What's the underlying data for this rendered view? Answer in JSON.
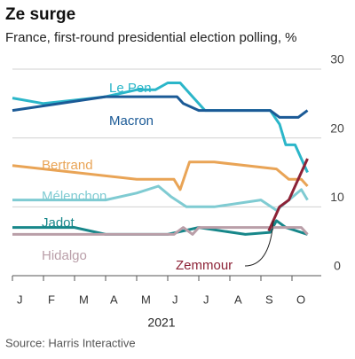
{
  "chart_data": {
    "type": "line",
    "title": "Ze surge",
    "subtitle": "France, first-round presidential election polling, %",
    "xlabel": "2021",
    "source": "Source: Harris Interactive",
    "xlim": [
      0,
      9.6
    ],
    "xticks": [
      {
        "value": 0,
        "label": "J"
      },
      {
        "value": 1,
        "label": "F"
      },
      {
        "value": 2,
        "label": "M"
      },
      {
        "value": 3,
        "label": "A"
      },
      {
        "value": 4,
        "label": "M"
      },
      {
        "value": 5,
        "label": "J"
      },
      {
        "value": 6,
        "label": "J"
      },
      {
        "value": 7,
        "label": "A"
      },
      {
        "value": 8,
        "label": "S"
      },
      {
        "value": 9,
        "label": "O"
      }
    ],
    "ylim": [
      0,
      30
    ],
    "yticks": [
      0,
      10,
      20,
      30
    ],
    "grid": true,
    "series": [
      {
        "name": "Le Pen",
        "color": "#2bb6c9",
        "x": [
          0,
          1,
          2,
          3,
          4,
          4.6,
          5,
          5.4,
          5.8,
          6.2,
          7,
          8.3,
          8.6,
          8.8,
          9.1,
          9.5
        ],
        "values": [
          25.8,
          25,
          25.5,
          26,
          27,
          27,
          28,
          28,
          26,
          24,
          24,
          24,
          22,
          19,
          19,
          15
        ]
      },
      {
        "name": "Macron",
        "color": "#1b5a96",
        "x": [
          0,
          3,
          4,
          5.3,
          5.5,
          6,
          8.3,
          8.6,
          9.2,
          9.5
        ],
        "values": [
          24,
          26,
          26,
          26,
          25,
          24,
          24,
          23,
          23,
          24
        ]
      },
      {
        "name": "Bertrand",
        "color": "#e9a456",
        "x": [
          0,
          2,
          4,
          5.2,
          5.4,
          5.7,
          6.5,
          8.5,
          8.9,
          9.3,
          9.5
        ],
        "values": [
          16,
          15,
          14,
          14,
          12.5,
          16.5,
          16.5,
          15.5,
          14,
          14,
          13
        ]
      },
      {
        "name": "Mélenchon",
        "color": "#7fcbd2",
        "x": [
          0,
          3,
          4,
          4.7,
          5.1,
          5.6,
          6.5,
          8,
          8.5,
          8.9,
          9.3,
          9.5
        ],
        "values": [
          11,
          11,
          12,
          13,
          11.5,
          10,
          10,
          11,
          9.5,
          11,
          12.5,
          11
        ]
      },
      {
        "name": "Jadot",
        "color": "#17878a",
        "x": [
          0,
          2,
          3,
          5,
          6,
          7.5,
          8.3,
          8.5,
          8.8,
          9.5
        ],
        "values": [
          7,
          7,
          6,
          6,
          7,
          6,
          6.3,
          8,
          7,
          6
        ]
      },
      {
        "name": "Hidalgo",
        "color": "#b99ea8",
        "x": [
          0,
          5.2,
          5.5,
          5.8,
          6,
          8.6,
          9.3,
          9.5
        ],
        "values": [
          6,
          6,
          7,
          6,
          7,
          7,
          7,
          6
        ]
      },
      {
        "name": "Zemmour",
        "color": "#8c2236",
        "x": [
          8.25,
          8.4,
          8.6,
          8.9,
          9.2,
          9.5
        ],
        "values": [
          6.5,
          8,
          10,
          11,
          14,
          17
        ]
      }
    ]
  }
}
